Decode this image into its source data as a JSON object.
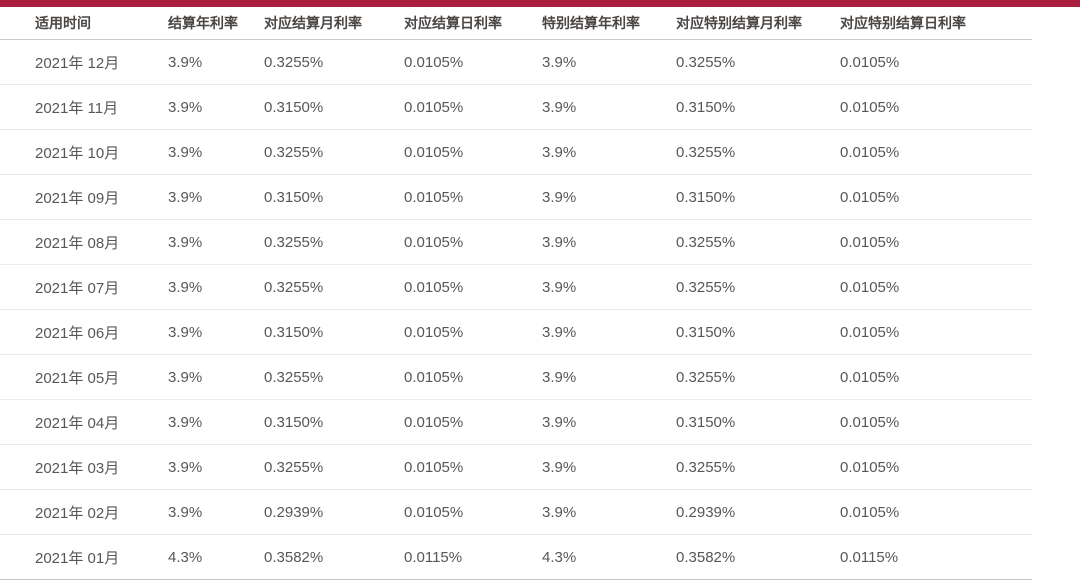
{
  "theme": {
    "accent_bar_color": "#a81e3f",
    "header_text_color": "#4a4644",
    "body_text_color": "#57575a",
    "row_separator_color": "#eaeaea",
    "header_underline_color": "#c9c9c9"
  },
  "table": {
    "columns": [
      {
        "label": "适用时间"
      },
      {
        "label": "结算年利率"
      },
      {
        "label": "对应结算月利率"
      },
      {
        "label": "对应结算日利率"
      },
      {
        "label": "特别结算年利率"
      },
      {
        "label": "对应特别结算月利率"
      },
      {
        "label": "对应特别结算日利率"
      }
    ],
    "rows": [
      {
        "cells": [
          "2021年 12月",
          "3.9%",
          "0.3255%",
          "0.0105%",
          "3.9%",
          "0.3255%",
          "0.0105%"
        ]
      },
      {
        "cells": [
          "2021年 11月",
          "3.9%",
          "0.3150%",
          "0.0105%",
          "3.9%",
          "0.3150%",
          "0.0105%"
        ]
      },
      {
        "cells": [
          "2021年 10月",
          "3.9%",
          "0.3255%",
          "0.0105%",
          "3.9%",
          "0.3255%",
          "0.0105%"
        ]
      },
      {
        "cells": [
          "2021年 09月",
          "3.9%",
          "0.3150%",
          "0.0105%",
          "3.9%",
          "0.3150%",
          "0.0105%"
        ]
      },
      {
        "cells": [
          "2021年 08月",
          "3.9%",
          "0.3255%",
          "0.0105%",
          "3.9%",
          "0.3255%",
          "0.0105%"
        ]
      },
      {
        "cells": [
          "2021年 07月",
          "3.9%",
          "0.3255%",
          "0.0105%",
          "3.9%",
          "0.3255%",
          "0.0105%"
        ]
      },
      {
        "cells": [
          "2021年 06月",
          "3.9%",
          "0.3150%",
          "0.0105%",
          "3.9%",
          "0.3150%",
          "0.0105%"
        ]
      },
      {
        "cells": [
          "2021年 05月",
          "3.9%",
          "0.3255%",
          "0.0105%",
          "3.9%",
          "0.3255%",
          "0.0105%"
        ]
      },
      {
        "cells": [
          "2021年 04月",
          "3.9%",
          "0.3150%",
          "0.0105%",
          "3.9%",
          "0.3150%",
          "0.0105%"
        ]
      },
      {
        "cells": [
          "2021年 03月",
          "3.9%",
          "0.3255%",
          "0.0105%",
          "3.9%",
          "0.3255%",
          "0.0105%"
        ]
      },
      {
        "cells": [
          "2021年 02月",
          "3.9%",
          "0.2939%",
          "0.0105%",
          "3.9%",
          "0.2939%",
          "0.0105%"
        ]
      },
      {
        "cells": [
          "2021年 01月",
          "4.3%",
          "0.3582%",
          "0.0115%",
          "4.3%",
          "0.3582%",
          "0.0115%"
        ]
      }
    ]
  },
  "chart_data": {
    "type": "table",
    "title": "",
    "columns": [
      "适用时间",
      "结算年利率",
      "对应结算月利率",
      "对应结算日利率",
      "特别结算年利率",
      "对应特别结算月利率",
      "对应特别结算日利率"
    ],
    "rows": [
      [
        "2021年 12月",
        "3.9%",
        "0.3255%",
        "0.0105%",
        "3.9%",
        "0.3255%",
        "0.0105%"
      ],
      [
        "2021年 11月",
        "3.9%",
        "0.3150%",
        "0.0105%",
        "3.9%",
        "0.3150%",
        "0.0105%"
      ],
      [
        "2021年 10月",
        "3.9%",
        "0.3255%",
        "0.0105%",
        "3.9%",
        "0.3255%",
        "0.0105%"
      ],
      [
        "2021年 09月",
        "3.9%",
        "0.3150%",
        "0.0105%",
        "3.9%",
        "0.3150%",
        "0.0105%"
      ],
      [
        "2021年 08月",
        "3.9%",
        "0.3255%",
        "0.0105%",
        "3.9%",
        "0.3255%",
        "0.0105%"
      ],
      [
        "2021年 07月",
        "3.9%",
        "0.3255%",
        "0.0105%",
        "3.9%",
        "0.3255%",
        "0.0105%"
      ],
      [
        "2021年 06月",
        "3.9%",
        "0.3150%",
        "0.0105%",
        "3.9%",
        "0.3150%",
        "0.0105%"
      ],
      [
        "2021年 05月",
        "3.9%",
        "0.3255%",
        "0.0105%",
        "3.9%",
        "0.3255%",
        "0.0105%"
      ],
      [
        "2021年 04月",
        "3.9%",
        "0.3150%",
        "0.0105%",
        "3.9%",
        "0.3150%",
        "0.0105%"
      ],
      [
        "2021年 03月",
        "3.9%",
        "0.3255%",
        "0.0105%",
        "3.9%",
        "0.3255%",
        "0.0105%"
      ],
      [
        "2021年 02月",
        "3.9%",
        "0.2939%",
        "0.0105%",
        "3.9%",
        "0.2939%",
        "0.0105%"
      ],
      [
        "2021年 01月",
        "4.3%",
        "0.3582%",
        "0.0115%",
        "4.3%",
        "0.3582%",
        "0.0115%"
      ]
    ]
  }
}
